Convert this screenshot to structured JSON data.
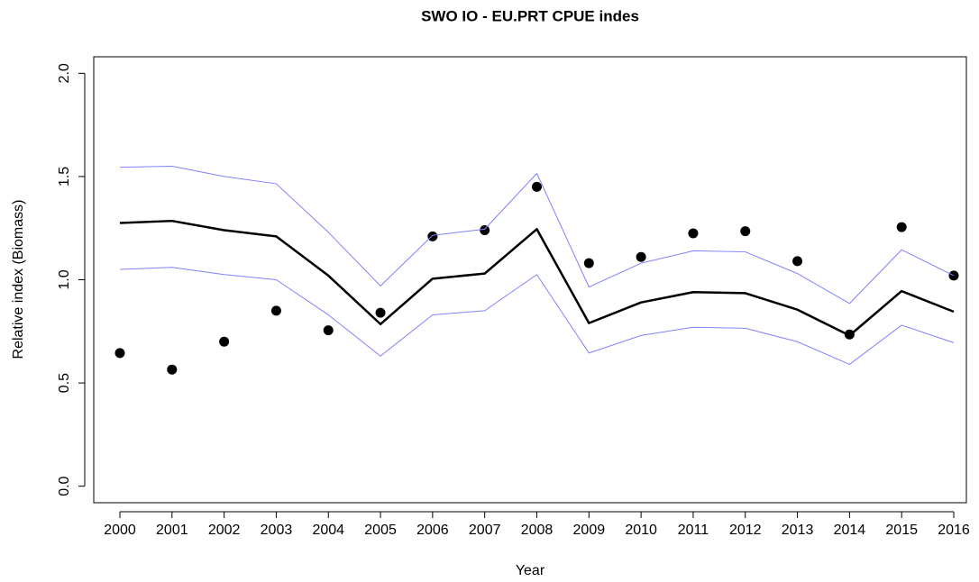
{
  "chart_data": {
    "type": "line",
    "title": "SWO IO - EU.PRT CPUE indes",
    "x_label": "Year",
    "y_label": "Relative index (Biomass)",
    "categories": [
      "2000",
      "2001",
      "2002",
      "2003",
      "2004",
      "2005",
      "2006",
      "2007",
      "2008",
      "2009",
      "2010",
      "2011",
      "2012",
      "2013",
      "2014",
      "2015",
      "2016"
    ],
    "series": [
      {
        "style": "point",
        "color": "#000000",
        "values": [
          0.645,
          0.565,
          0.7,
          0.85,
          0.755,
          0.84,
          1.21,
          1.24,
          1.45,
          1.08,
          1.11,
          1.225,
          1.235,
          1.09,
          0.735,
          1.255,
          1.02
        ]
      },
      {
        "style": "line",
        "color": "#000000",
        "line_width": 2.5,
        "values": [
          1.275,
          1.285,
          1.24,
          1.21,
          1.02,
          0.785,
          1.005,
          1.03,
          1.245,
          0.79,
          0.89,
          0.94,
          0.935,
          0.855,
          0.73,
          0.945,
          0.845
        ]
      },
      {
        "style": "line",
        "color": "#8080ff",
        "line_width": 1,
        "values": [
          1.545,
          1.55,
          1.5,
          1.465,
          1.23,
          0.97,
          1.215,
          1.245,
          1.515,
          0.965,
          1.08,
          1.14,
          1.135,
          1.03,
          0.885,
          1.145,
          1.02
        ]
      },
      {
        "style": "line",
        "color": "#8080ff",
        "line_width": 1,
        "values": [
          1.05,
          1.06,
          1.025,
          1.0,
          0.83,
          0.63,
          0.83,
          0.85,
          1.025,
          0.645,
          0.73,
          0.77,
          0.765,
          0.7,
          0.59,
          0.78,
          0.695
        ]
      }
    ],
    "ylim": [
      -0.08,
      2.08
    ],
    "yticks": [
      {
        "value": 0,
        "label": "0.0"
      },
      {
        "value": 0.5,
        "label": "0.5"
      },
      {
        "value": 1,
        "label": "1.0"
      },
      {
        "value": 1.5,
        "label": "1.5"
      },
      {
        "value": 2,
        "label": "2.0"
      }
    ]
  }
}
